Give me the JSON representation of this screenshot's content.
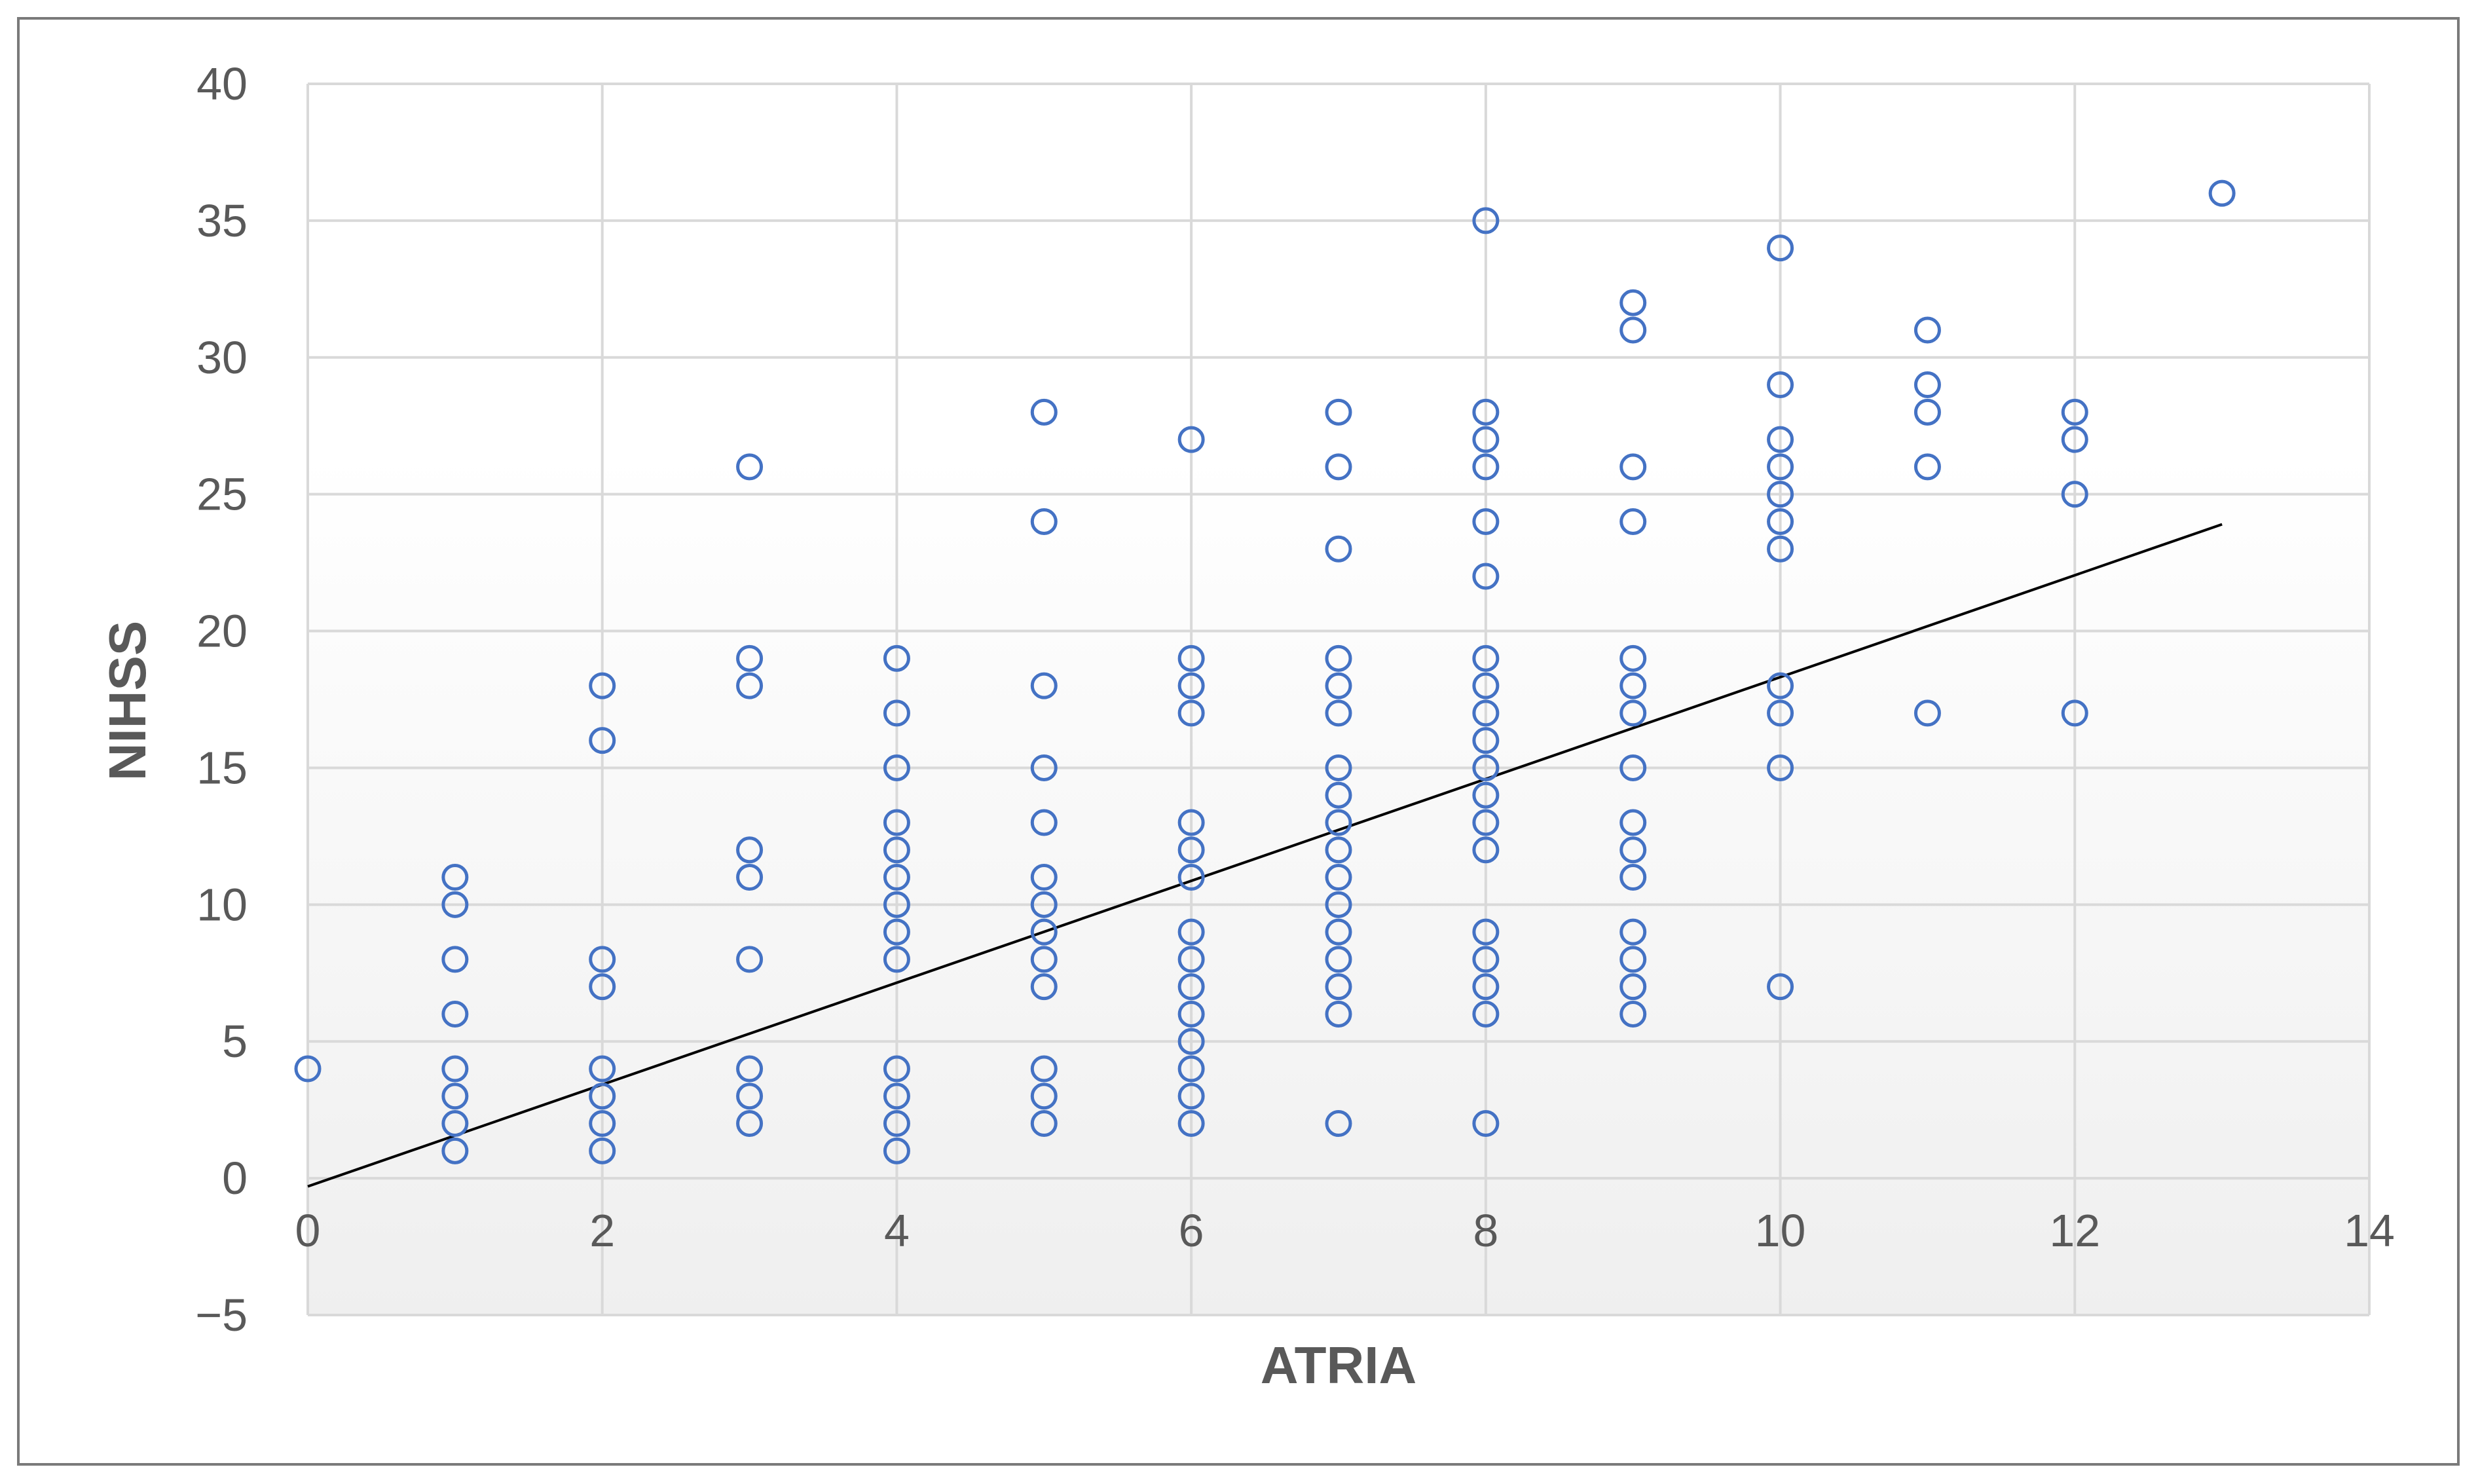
{
  "chart_data": {
    "type": "scatter",
    "xlabel": "ATRIA",
    "ylabel": "NIHSS",
    "xlim": [
      0,
      14
    ],
    "ylim": [
      -5,
      40
    ],
    "x_ticks": [
      "0",
      "2",
      "4",
      "6",
      "8",
      "10",
      "12",
      "14"
    ],
    "y_ticks": [
      "40",
      "35",
      "30",
      "25",
      "20",
      "15",
      "10",
      "5",
      "0",
      "−5"
    ],
    "grid": true,
    "legend": "none",
    "marker": "open-circle",
    "marker_color": "#4472C4",
    "trendline": {
      "type": "linear",
      "x": [
        0,
        13
      ],
      "y": [
        -0.3,
        23.9
      ],
      "color": "#000000"
    },
    "points": [
      {
        "x": 0,
        "y": 4
      },
      {
        "x": 1,
        "y": 11
      },
      {
        "x": 1,
        "y": 10
      },
      {
        "x": 1,
        "y": 8
      },
      {
        "x": 1,
        "y": 6
      },
      {
        "x": 1,
        "y": 4
      },
      {
        "x": 1,
        "y": 3
      },
      {
        "x": 1,
        "y": 2
      },
      {
        "x": 1,
        "y": 1
      },
      {
        "x": 2,
        "y": 18
      },
      {
        "x": 2,
        "y": 16
      },
      {
        "x": 2,
        "y": 8
      },
      {
        "x": 2,
        "y": 7
      },
      {
        "x": 2,
        "y": 4
      },
      {
        "x": 2,
        "y": 3
      },
      {
        "x": 2,
        "y": 2
      },
      {
        "x": 2,
        "y": 1
      },
      {
        "x": 3,
        "y": 26
      },
      {
        "x": 3,
        "y": 19
      },
      {
        "x": 3,
        "y": 18
      },
      {
        "x": 3,
        "y": 12
      },
      {
        "x": 3,
        "y": 11
      },
      {
        "x": 3,
        "y": 8
      },
      {
        "x": 3,
        "y": 4
      },
      {
        "x": 3,
        "y": 3
      },
      {
        "x": 3,
        "y": 2
      },
      {
        "x": 4,
        "y": 19
      },
      {
        "x": 4,
        "y": 17
      },
      {
        "x": 4,
        "y": 15
      },
      {
        "x": 4,
        "y": 13
      },
      {
        "x": 4,
        "y": 12
      },
      {
        "x": 4,
        "y": 11
      },
      {
        "x": 4,
        "y": 10
      },
      {
        "x": 4,
        "y": 9
      },
      {
        "x": 4,
        "y": 8
      },
      {
        "x": 4,
        "y": 4
      },
      {
        "x": 4,
        "y": 3
      },
      {
        "x": 4,
        "y": 2
      },
      {
        "x": 4,
        "y": 1
      },
      {
        "x": 5,
        "y": 28
      },
      {
        "x": 5,
        "y": 24
      },
      {
        "x": 5,
        "y": 18
      },
      {
        "x": 5,
        "y": 15
      },
      {
        "x": 5,
        "y": 13
      },
      {
        "x": 5,
        "y": 11
      },
      {
        "x": 5,
        "y": 10
      },
      {
        "x": 5,
        "y": 9
      },
      {
        "x": 5,
        "y": 8
      },
      {
        "x": 5,
        "y": 7
      },
      {
        "x": 5,
        "y": 4
      },
      {
        "x": 5,
        "y": 3
      },
      {
        "x": 5,
        "y": 2
      },
      {
        "x": 6,
        "y": 27
      },
      {
        "x": 6,
        "y": 19
      },
      {
        "x": 6,
        "y": 18
      },
      {
        "x": 6,
        "y": 17
      },
      {
        "x": 6,
        "y": 13
      },
      {
        "x": 6,
        "y": 12
      },
      {
        "x": 6,
        "y": 11
      },
      {
        "x": 6,
        "y": 9
      },
      {
        "x": 6,
        "y": 8
      },
      {
        "x": 6,
        "y": 7
      },
      {
        "x": 6,
        "y": 6
      },
      {
        "x": 6,
        "y": 5
      },
      {
        "x": 6,
        "y": 4
      },
      {
        "x": 6,
        "y": 3
      },
      {
        "x": 6,
        "y": 2
      },
      {
        "x": 7,
        "y": 28
      },
      {
        "x": 7,
        "y": 26
      },
      {
        "x": 7,
        "y": 23
      },
      {
        "x": 7,
        "y": 19
      },
      {
        "x": 7,
        "y": 18
      },
      {
        "x": 7,
        "y": 17
      },
      {
        "x": 7,
        "y": 15
      },
      {
        "x": 7,
        "y": 14
      },
      {
        "x": 7,
        "y": 13
      },
      {
        "x": 7,
        "y": 12
      },
      {
        "x": 7,
        "y": 11
      },
      {
        "x": 7,
        "y": 10
      },
      {
        "x": 7,
        "y": 9
      },
      {
        "x": 7,
        "y": 8
      },
      {
        "x": 7,
        "y": 7
      },
      {
        "x": 7,
        "y": 6
      },
      {
        "x": 7,
        "y": 2
      },
      {
        "x": 8,
        "y": 35
      },
      {
        "x": 8,
        "y": 28
      },
      {
        "x": 8,
        "y": 27
      },
      {
        "x": 8,
        "y": 26
      },
      {
        "x": 8,
        "y": 24
      },
      {
        "x": 8,
        "y": 22
      },
      {
        "x": 8,
        "y": 19
      },
      {
        "x": 8,
        "y": 18
      },
      {
        "x": 8,
        "y": 17
      },
      {
        "x": 8,
        "y": 16
      },
      {
        "x": 8,
        "y": 15
      },
      {
        "x": 8,
        "y": 14
      },
      {
        "x": 8,
        "y": 13
      },
      {
        "x": 8,
        "y": 12
      },
      {
        "x": 8,
        "y": 9
      },
      {
        "x": 8,
        "y": 8
      },
      {
        "x": 8,
        "y": 7
      },
      {
        "x": 8,
        "y": 6
      },
      {
        "x": 8,
        "y": 2
      },
      {
        "x": 9,
        "y": 32
      },
      {
        "x": 9,
        "y": 31
      },
      {
        "x": 9,
        "y": 26
      },
      {
        "x": 9,
        "y": 24
      },
      {
        "x": 9,
        "y": 19
      },
      {
        "x": 9,
        "y": 18
      },
      {
        "x": 9,
        "y": 17
      },
      {
        "x": 9,
        "y": 15
      },
      {
        "x": 9,
        "y": 13
      },
      {
        "x": 9,
        "y": 12
      },
      {
        "x": 9,
        "y": 11
      },
      {
        "x": 9,
        "y": 9
      },
      {
        "x": 9,
        "y": 8
      },
      {
        "x": 9,
        "y": 7
      },
      {
        "x": 9,
        "y": 6
      },
      {
        "x": 10,
        "y": 34
      },
      {
        "x": 10,
        "y": 29
      },
      {
        "x": 10,
        "y": 27
      },
      {
        "x": 10,
        "y": 26
      },
      {
        "x": 10,
        "y": 25
      },
      {
        "x": 10,
        "y": 24
      },
      {
        "x": 10,
        "y": 23
      },
      {
        "x": 10,
        "y": 18
      },
      {
        "x": 10,
        "y": 17
      },
      {
        "x": 10,
        "y": 15
      },
      {
        "x": 10,
        "y": 7
      },
      {
        "x": 11,
        "y": 31
      },
      {
        "x": 11,
        "y": 29
      },
      {
        "x": 11,
        "y": 28
      },
      {
        "x": 11,
        "y": 26
      },
      {
        "x": 11,
        "y": 17
      },
      {
        "x": 12,
        "y": 28
      },
      {
        "x": 12,
        "y": 27
      },
      {
        "x": 12,
        "y": 25
      },
      {
        "x": 12,
        "y": 17
      },
      {
        "x": 13,
        "y": 36
      }
    ]
  }
}
